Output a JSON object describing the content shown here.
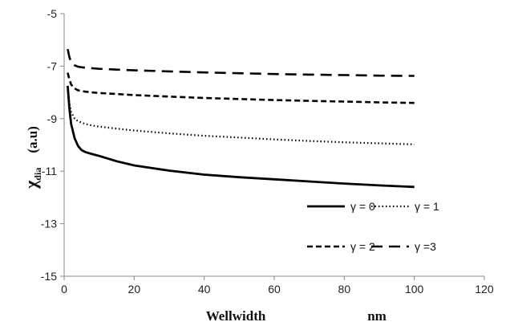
{
  "chart_data": {
    "type": "line",
    "title": "",
    "xlabel": "Wellwidth",
    "xunit": "nm",
    "ylabel": "(a.u)",
    "ylabel_symbol": "χ",
    "ylabel_subscript": "dia",
    "xlim": [
      0,
      120
    ],
    "ylim": [
      -15,
      -5
    ],
    "x_ticks": [
      0,
      20,
      40,
      60,
      80,
      100,
      120
    ],
    "y_ticks": [
      -15,
      -13,
      -11,
      -9,
      -7,
      -5
    ],
    "grid": false,
    "legend_placement": "bottom-right",
    "series": [
      {
        "name": "γ = 0",
        "style": "solid",
        "x": [
          1,
          1.5,
          2,
          3,
          4,
          5,
          6,
          8,
          10,
          15,
          20,
          30,
          40,
          50,
          60,
          70,
          80,
          90,
          100
        ],
        "y": [
          -7.75,
          -8.6,
          -9.2,
          -9.75,
          -10.05,
          -10.2,
          -10.27,
          -10.35,
          -10.42,
          -10.62,
          -10.78,
          -10.98,
          -11.13,
          -11.23,
          -11.31,
          -11.39,
          -11.47,
          -11.54,
          -11.6
        ]
      },
      {
        "name": "γ = 1",
        "style": "dotted",
        "x": [
          1,
          1.5,
          2,
          3,
          4,
          6,
          8,
          10,
          15,
          20,
          30,
          40,
          50,
          60,
          70,
          80,
          90,
          100
        ],
        "y": [
          -7.9,
          -8.4,
          -8.75,
          -9.0,
          -9.1,
          -9.2,
          -9.26,
          -9.3,
          -9.38,
          -9.45,
          -9.56,
          -9.65,
          -9.72,
          -9.79,
          -9.85,
          -9.9,
          -9.94,
          -9.98
        ]
      },
      {
        "name": "γ = 2",
        "style": "dashed",
        "x": [
          1,
          1.5,
          2,
          3,
          4,
          6,
          8,
          10,
          15,
          20,
          30,
          40,
          50,
          60,
          70,
          80,
          90,
          100
        ],
        "y": [
          -7.25,
          -7.5,
          -7.7,
          -7.85,
          -7.92,
          -7.97,
          -8.0,
          -8.02,
          -8.06,
          -8.1,
          -8.16,
          -8.21,
          -8.25,
          -8.29,
          -8.32,
          -8.35,
          -8.38,
          -8.4
        ]
      },
      {
        "name": "γ =3",
        "style": "long-dashed",
        "x": [
          1,
          1.5,
          2,
          3,
          4,
          6,
          8,
          10,
          15,
          20,
          30,
          40,
          50,
          60,
          70,
          80,
          90,
          100
        ],
        "y": [
          -6.35,
          -6.65,
          -6.85,
          -6.97,
          -7.02,
          -7.06,
          -7.08,
          -7.1,
          -7.13,
          -7.16,
          -7.2,
          -7.24,
          -7.27,
          -7.3,
          -7.32,
          -7.34,
          -7.36,
          -7.37
        ]
      }
    ]
  },
  "colors": {
    "line": "#000000",
    "axis": "#888888"
  }
}
